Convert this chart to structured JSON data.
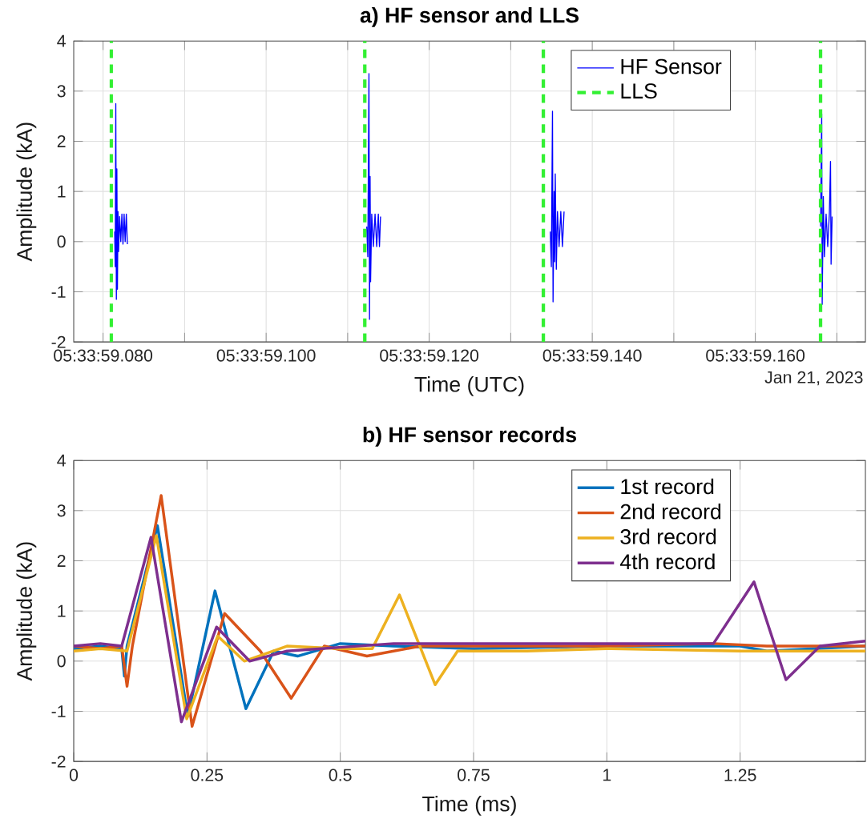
{
  "chart_data": [
    {
      "type": "line",
      "title": "a) HF sensor and LLS",
      "xlabel": "Time (UTC)",
      "ylabel": "Amplitude (kA)",
      "xlim": [
        "2023-01-21T05:33:59.0764",
        "2023-01-21T05:33:59.1735"
      ],
      "ylim": [
        -2,
        4
      ],
      "xticks": [
        {
          "value": "2023-01-21T05:33:59.080",
          "label": "05:33:59.080"
        },
        {
          "value": "2023-01-21T05:33:59.090",
          "label": null
        },
        {
          "value": "2023-01-21T05:33:59.100",
          "label": "05:33:59.100"
        },
        {
          "value": "2023-01-21T05:33:59.110",
          "label": null
        },
        {
          "value": "2023-01-21T05:33:59.120",
          "label": "05:33:59.120"
        },
        {
          "value": "2023-01-21T05:33:59.130",
          "label": null
        },
        {
          "value": "2023-01-21T05:33:59.140",
          "label": "05:33:59.140"
        },
        {
          "value": "2023-01-21T05:33:59.150",
          "label": null
        },
        {
          "value": "2023-01-21T05:33:59.160",
          "label": "05:33:59.160"
        },
        {
          "value": "2023-01-21T05:33:59.170",
          "label": null
        }
      ],
      "yticks": [
        -2,
        -1,
        0,
        1,
        2,
        3,
        4
      ],
      "grid": true,
      "legend": "top right",
      "annotations": [
        "Jan 21, 2023"
      ],
      "series": [
        {
          "name": "HF Sensor",
          "color": "#0000ff",
          "x": [
            "2023-01-21T05:33:59.08142",
            "2023-01-21T05:33:59.08149",
            "2023-01-21T05:33:59.08156",
            "2023-01-21T05:33:59.08163",
            "2023-01-21T05:33:59.08169",
            "2023-01-21T05:33:59.08176",
            "2023-01-21T05:33:59.08183",
            "2023-01-21T05:33:59.0819",
            "2023-01-21T05:33:59.08203",
            "2023-01-21T05:33:59.08217",
            "2023-01-21T05:33:59.08231",
            "2023-01-21T05:33:59.08244",
            "2023-01-21T05:33:59.08258",
            "2023-01-21T05:33:59.08271",
            "2023-01-21T05:33:59.08285",
            "2023-01-21T05:33:59.08298",
            "2023-01-21T05:33:59.09",
            "2023-01-21T05:33:59.11234",
            "2023-01-21T05:33:59.11247",
            "2023-01-21T05:33:59.11261",
            "2023-01-21T05:33:59.11268",
            "2023-01-21T05:33:59.11275",
            "2023-01-21T05:33:59.11281",
            "2023-01-21T05:33:59.11295",
            "2023-01-21T05:33:59.11315",
            "2023-01-21T05:33:59.11336",
            "2023-01-21T05:33:59.11356",
            "2023-01-21T05:33:59.11376",
            "2023-01-21T05:33:59.1139",
            "2023-01-21T05:33:59.11403",
            "2023-01-21T05:33:59.12",
            "2023-01-21T05:33:59.13485",
            "2023-01-21T05:33:59.13498",
            "2023-01-21T05:33:59.13512",
            "2023-01-21T05:33:59.13519",
            "2023-01-21T05:33:59.13532",
            "2023-01-21T05:33:59.13539",
            "2023-01-21T05:33:59.13546",
            "2023-01-21T05:33:59.13559",
            "2023-01-21T05:33:59.13573",
            "2023-01-21T05:33:59.13593",
            "2023-01-21T05:33:59.13614",
            "2023-01-21T05:33:59.13634",
            "2023-01-21T05:33:59.13654",
            "2023-01-21T05:33:59.15",
            "2023-01-21T05:33:59.168",
            "2023-01-21T05:33:59.16814",
            "2023-01-21T05:33:59.1682",
            "2023-01-21T05:33:59.16834",
            "2023-01-21T05:33:59.16847",
            "2023-01-21T05:33:59.16868",
            "2023-01-21T05:33:59.16888",
            "2023-01-21T05:33:59.16908",
            "2023-01-21T05:33:59.16922",
            "2023-01-21T05:33:59.16929",
            "2023-01-21T05:33:59.16942"
          ],
          "values": [
            0.2,
            -0.5,
            2.75,
            -1.15,
            1.45,
            -0.95,
            0.6,
            -0.2,
            0.5,
            0,
            0.55,
            -0.05,
            0.55,
            0,
            0.55,
            -0.05,
            null,
            0.3,
            -0.3,
            3.35,
            -1.55,
            1.3,
            -0.8,
            0.55,
            -0.1,
            0.55,
            -0.1,
            0.55,
            -0.1,
            0.5,
            null,
            0.2,
            -0.5,
            2.6,
            -1.2,
            1.0,
            -0.4,
            1.35,
            -0.55,
            0.6,
            -0.1,
            0.6,
            -0.1,
            0.6,
            null,
            0.3,
            2.55,
            -1.25,
            0.9,
            -0.3,
            0.55,
            -0.1,
            0.55,
            1.6,
            -0.45,
            0.5
          ]
        },
        {
          "name": "LLS",
          "color": "#33f033",
          "line_style": "dashed",
          "x": [
            "2023-01-21T05:33:59.081",
            "2023-01-21T05:33:59.081",
            "2023-01-21T05:33:59.1",
            "2023-01-21T05:33:59.1121",
            "2023-01-21T05:33:59.1121",
            "2023-01-21T05:33:59.12",
            "2023-01-21T05:33:59.134",
            "2023-01-21T05:33:59.134",
            "2023-01-21T05:33:59.15",
            "2023-01-21T05:33:59.168",
            "2023-01-21T05:33:59.168"
          ],
          "values": [
            -2,
            4,
            null,
            -2,
            4,
            null,
            -2,
            4,
            null,
            -2,
            4
          ]
        }
      ]
    },
    {
      "type": "line",
      "title": "b) HF sensor records",
      "xlabel": "Time (ms)",
      "ylabel": "Amplitude (kA)",
      "xlim": [
        0,
        1.485
      ],
      "ylim": [
        -2,
        4
      ],
      "xticks": [
        0,
        0.25,
        0.5,
        0.75,
        1,
        1.25
      ],
      "yticks": [
        -2,
        -1,
        0,
        1,
        2,
        3,
        4
      ],
      "grid": true,
      "legend": "top right",
      "series": [
        {
          "name": "1st record",
          "color": "#0072bd",
          "x": [
            0,
            0.05,
            0.09,
            0.095,
            0.1,
            0.157,
            0.214,
            0.265,
            0.323,
            0.375,
            0.42,
            0.5,
            0.6,
            0.75,
            1.0,
            1.25,
            1.3,
            1.485
          ],
          "values": [
            0.25,
            0.3,
            0.25,
            -0.3,
            0.3,
            2.7,
            -1.1,
            1.4,
            -0.95,
            0.2,
            0.1,
            0.35,
            0.3,
            0.25,
            0.3,
            0.3,
            0.2,
            0.3
          ]
        },
        {
          "name": "2nd record",
          "color": "#d95319",
          "x": [
            0,
            0.05,
            0.09,
            0.1,
            0.11,
            0.164,
            0.222,
            0.283,
            0.35,
            0.408,
            0.47,
            0.55,
            0.65,
            0.8,
            1.0,
            1.2,
            1.3,
            1.485
          ],
          "values": [
            0.3,
            0.25,
            0.3,
            -0.5,
            0.3,
            3.3,
            -1.3,
            0.95,
            0.2,
            -0.74,
            0.3,
            0.1,
            0.3,
            0.3,
            0.3,
            0.35,
            0.3,
            0.3
          ]
        },
        {
          "name": "3rd record",
          "color": "#edb120",
          "x": [
            0,
            0.05,
            0.1,
            0.155,
            0.212,
            0.27,
            0.32,
            0.4,
            0.5,
            0.56,
            0.611,
            0.678,
            0.72,
            0.85,
            1.0,
            1.25,
            1.3,
            1.485
          ],
          "values": [
            0.2,
            0.25,
            0.2,
            2.5,
            -1.15,
            0.5,
            0,
            0.3,
            0.25,
            0.25,
            1.32,
            -0.47,
            0.2,
            0.2,
            0.25,
            0.2,
            0.2,
            0.2
          ]
        },
        {
          "name": "4th record",
          "color": "#7e2f8e",
          "x": [
            0,
            0.05,
            0.09,
            0.145,
            0.202,
            0.268,
            0.33,
            0.4,
            0.6,
            0.8,
            1.0,
            1.2,
            1.276,
            1.336,
            1.4,
            1.485
          ],
          "values": [
            0.3,
            0.35,
            0.3,
            2.47,
            -1.21,
            0.68,
            0.0,
            0.2,
            0.35,
            0.35,
            0.35,
            0.35,
            1.58,
            -0.37,
            0.3,
            0.4
          ]
        }
      ]
    }
  ]
}
